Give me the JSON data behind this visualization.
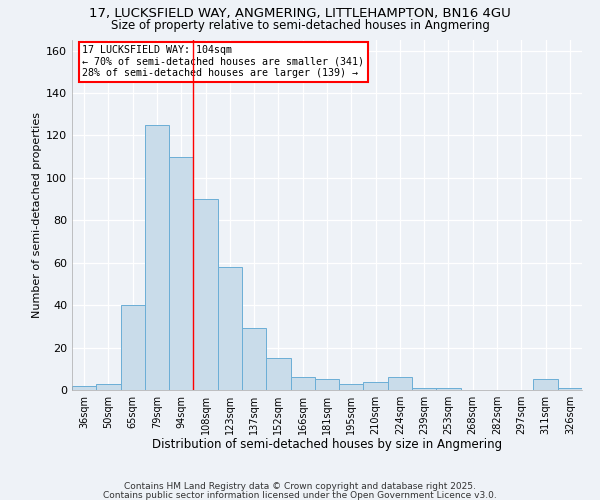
{
  "title": "17, LUCKSFIELD WAY, ANGMERING, LITTLEHAMPTON, BN16 4GU",
  "subtitle": "Size of property relative to semi-detached houses in Angmering",
  "xlabel": "Distribution of semi-detached houses by size in Angmering",
  "ylabel": "Number of semi-detached properties",
  "categories": [
    "36sqm",
    "50sqm",
    "65sqm",
    "79sqm",
    "94sqm",
    "108sqm",
    "123sqm",
    "137sqm",
    "152sqm",
    "166sqm",
    "181sqm",
    "195sqm",
    "210sqm",
    "224sqm",
    "239sqm",
    "253sqm",
    "268sqm",
    "282sqm",
    "297sqm",
    "311sqm",
    "326sqm"
  ],
  "values": [
    2,
    3,
    40,
    125,
    110,
    90,
    58,
    29,
    15,
    6,
    5,
    3,
    4,
    6,
    1,
    1,
    0,
    0,
    0,
    5,
    1
  ],
  "bar_color": "#c9dcea",
  "bar_edgecolor": "#6baed6",
  "property_size_index": 5,
  "vline_color": "red",
  "annotation_text": "17 LUCKSFIELD WAY: 104sqm\n← 70% of semi-detached houses are smaller (341)\n28% of semi-detached houses are larger (139) →",
  "annotation_box_edgecolor": "red",
  "ylim": [
    0,
    165
  ],
  "yticks": [
    0,
    20,
    40,
    60,
    80,
    100,
    120,
    140,
    160
  ],
  "background_color": "#eef2f7",
  "grid_color": "white",
  "footer1": "Contains HM Land Registry data © Crown copyright and database right 2025.",
  "footer2": "Contains public sector information licensed under the Open Government Licence v3.0."
}
